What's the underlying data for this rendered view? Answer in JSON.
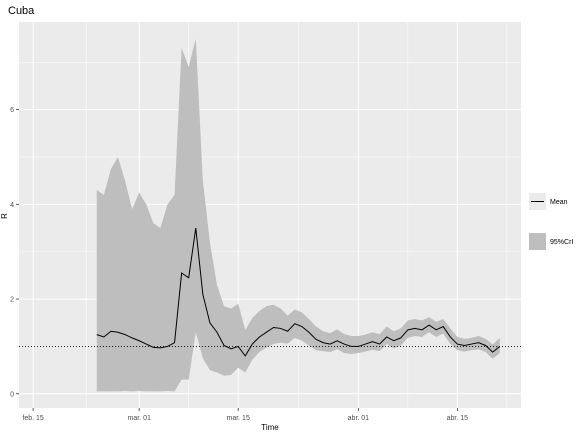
{
  "chart_data": {
    "type": "line",
    "title": "Cuba",
    "xlabel": "Time",
    "ylabel": "R",
    "x_ticks": [
      "feb. 15",
      "mar. 01",
      "mar. 15",
      "abr. 01",
      "abr. 15"
    ],
    "x_tick_dates": [
      "2020-02-15",
      "2020-03-01",
      "2020-03-15",
      "2020-04-01",
      "2020-04-15"
    ],
    "xlim": [
      "2020-02-13",
      "2020-04-24"
    ],
    "y_ticks": [
      0,
      2,
      4,
      6
    ],
    "ylim": [
      -0.3,
      7.85
    ],
    "grid": true,
    "reference_line": {
      "y": 1,
      "style": "dotted"
    },
    "legend": {
      "position": "right",
      "mean_label": "Mean",
      "ci_label": "95%CrI"
    },
    "colors": {
      "mean": "#000000",
      "ci": "#bebebe",
      "panel": "#ebebeb",
      "grid": "#ffffff"
    },
    "x": [
      "2020-02-24",
      "2020-02-25",
      "2020-02-26",
      "2020-02-27",
      "2020-02-28",
      "2020-02-29",
      "2020-03-01",
      "2020-03-02",
      "2020-03-03",
      "2020-03-04",
      "2020-03-05",
      "2020-03-06",
      "2020-03-07",
      "2020-03-08",
      "2020-03-09",
      "2020-03-10",
      "2020-03-11",
      "2020-03-12",
      "2020-03-13",
      "2020-03-14",
      "2020-03-15",
      "2020-03-16",
      "2020-03-17",
      "2020-03-18",
      "2020-03-19",
      "2020-03-20",
      "2020-03-21",
      "2020-03-22",
      "2020-03-23",
      "2020-03-24",
      "2020-03-25",
      "2020-03-26",
      "2020-03-27",
      "2020-03-28",
      "2020-03-29",
      "2020-03-30",
      "2020-03-31",
      "2020-04-01",
      "2020-04-02",
      "2020-04-03",
      "2020-04-04",
      "2020-04-05",
      "2020-04-06",
      "2020-04-07",
      "2020-04-08",
      "2020-04-09",
      "2020-04-10",
      "2020-04-11",
      "2020-04-12",
      "2020-04-13",
      "2020-04-14",
      "2020-04-15",
      "2020-04-16",
      "2020-04-17",
      "2020-04-18",
      "2020-04-19",
      "2020-04-20",
      "2020-04-21"
    ],
    "series": [
      {
        "name": "Mean",
        "values": [
          1.25,
          1.2,
          1.32,
          1.3,
          1.25,
          1.18,
          1.12,
          1.05,
          0.98,
          0.97,
          1.0,
          1.08,
          2.55,
          2.45,
          3.5,
          2.1,
          1.5,
          1.3,
          1.02,
          0.95,
          1.0,
          0.8,
          1.05,
          1.2,
          1.3,
          1.4,
          1.38,
          1.32,
          1.48,
          1.42,
          1.3,
          1.15,
          1.08,
          1.05,
          1.12,
          1.05,
          1.0,
          1.0,
          1.05,
          1.1,
          1.05,
          1.2,
          1.12,
          1.18,
          1.35,
          1.38,
          1.35,
          1.45,
          1.35,
          1.42,
          1.2,
          1.05,
          1.02,
          1.05,
          1.08,
          1.02,
          0.88,
          1.0
        ]
      },
      {
        "name": "95%CrI",
        "lower": [
          0.05,
          0.05,
          0.05,
          0.05,
          0.06,
          0.05,
          0.06,
          0.05,
          0.05,
          0.05,
          0.06,
          0.05,
          0.3,
          0.3,
          1.3,
          0.75,
          0.5,
          0.45,
          0.38,
          0.4,
          0.55,
          0.45,
          0.72,
          0.88,
          0.98,
          1.05,
          1.08,
          1.06,
          1.18,
          1.12,
          1.02,
          0.92,
          0.9,
          0.88,
          0.94,
          0.86,
          0.84,
          0.86,
          0.89,
          0.93,
          0.9,
          1.05,
          0.96,
          1.02,
          1.18,
          1.22,
          1.2,
          1.3,
          1.2,
          1.27,
          1.05,
          0.92,
          0.89,
          0.92,
          0.94,
          0.88,
          0.74,
          0.86
        ],
        "upper": [
          4.3,
          4.2,
          4.75,
          5.0,
          4.5,
          3.9,
          4.25,
          4.0,
          3.6,
          3.5,
          4.0,
          4.2,
          7.3,
          6.9,
          7.5,
          4.5,
          3.2,
          2.3,
          1.85,
          1.8,
          1.9,
          1.35,
          1.6,
          1.75,
          1.85,
          1.88,
          1.8,
          1.65,
          1.78,
          1.72,
          1.58,
          1.42,
          1.32,
          1.28,
          1.36,
          1.26,
          1.22,
          1.22,
          1.25,
          1.3,
          1.26,
          1.42,
          1.32,
          1.38,
          1.55,
          1.58,
          1.55,
          1.62,
          1.52,
          1.58,
          1.38,
          1.2,
          1.16,
          1.18,
          1.22,
          1.16,
          1.04,
          1.18
        ]
      }
    ]
  }
}
